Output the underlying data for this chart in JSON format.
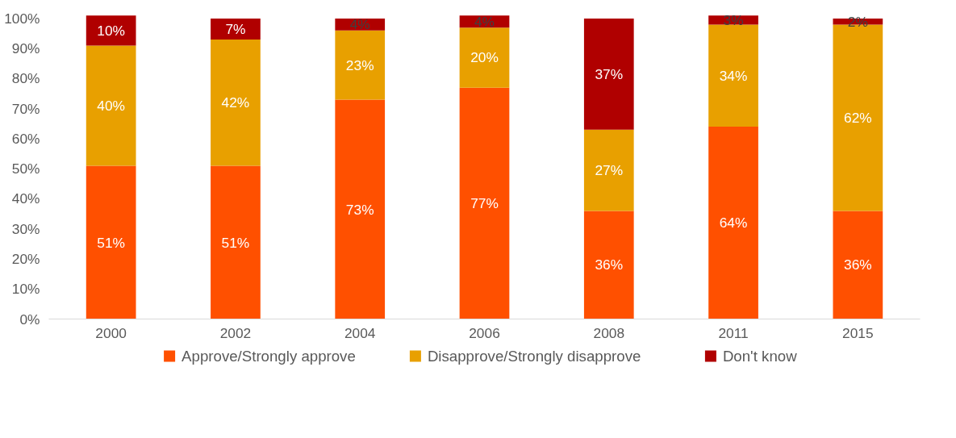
{
  "chart_data": {
    "type": "bar",
    "stacked": true,
    "categories": [
      "2000",
      "2002",
      "2004",
      "2006",
      "2008",
      "2011",
      "2015"
    ],
    "series": [
      {
        "name": "Approve/Strongly approve",
        "color": "#ff5000",
        "values": [
          51,
          51,
          73,
          77,
          36,
          64,
          36
        ],
        "value_labels": [
          "51%",
          "51%",
          "73%",
          "77%",
          "36%",
          "64%",
          "36%"
        ]
      },
      {
        "name": "Disapprove/Strongly disapprove",
        "color": "#e8a000",
        "values": [
          40,
          42,
          23,
          20,
          27,
          34,
          62
        ],
        "value_labels": [
          "40%",
          "42%",
          "23%",
          "20%",
          "27%",
          "34%",
          "62%"
        ]
      },
      {
        "name": "Don't know",
        "color": "#b00000",
        "values": [
          10,
          7,
          4,
          4,
          37,
          3,
          2
        ],
        "value_labels": [
          "10%",
          "7%",
          "4%",
          "4%",
          "37%",
          "3%",
          "2%"
        ]
      }
    ],
    "ylim": [
      0,
      102
    ],
    "yticks": [
      {
        "value": 0,
        "label": "0%"
      },
      {
        "value": 10,
        "label": "10%"
      },
      {
        "value": 20,
        "label": "20%"
      },
      {
        "value": 30,
        "label": "30%"
      },
      {
        "value": 40,
        "label": "40%"
      },
      {
        "value": 50,
        "label": "50%"
      },
      {
        "value": 60,
        "label": "60%"
      },
      {
        "value": 70,
        "label": "70%"
      },
      {
        "value": 80,
        "label": "80%"
      },
      {
        "value": 90,
        "label": "90%"
      },
      {
        "value": 100,
        "label": "100%"
      }
    ],
    "grid": false,
    "legend": "bottom"
  }
}
